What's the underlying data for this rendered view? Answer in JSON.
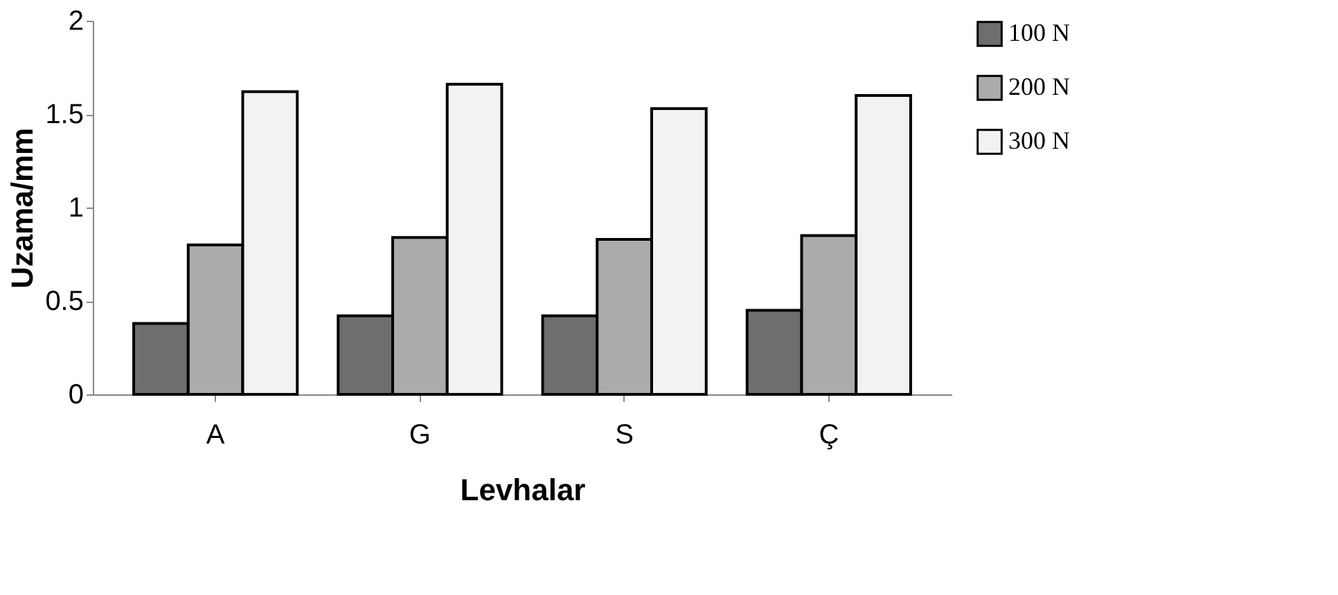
{
  "chart_data": {
    "type": "bar",
    "xlabel": "Levhalar",
    "ylabel": "Uzama/mm",
    "categories": [
      "A",
      "G",
      "S",
      "Ç"
    ],
    "series": [
      {
        "name": "100 N",
        "color": "#6e6e6e",
        "values": [
          0.38,
          0.42,
          0.42,
          0.45
        ]
      },
      {
        "name": "200 N",
        "color": "#ababab",
        "values": [
          0.8,
          0.84,
          0.83,
          0.85
        ]
      },
      {
        "name": "300 N",
        "color": "#f2f2f2",
        "values": [
          1.62,
          1.66,
          1.53,
          1.6
        ]
      }
    ],
    "ylim": [
      0,
      2
    ],
    "yticks": [
      0,
      0.5,
      1,
      1.5,
      2
    ],
    "grid": false,
    "legend": "right"
  }
}
